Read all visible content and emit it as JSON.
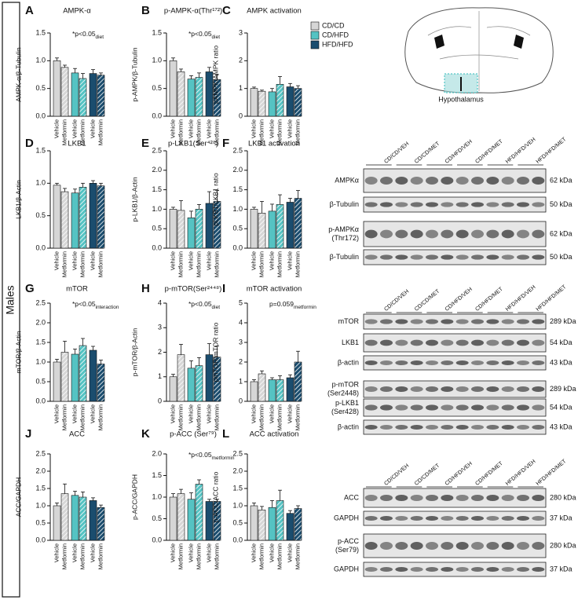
{
  "side_label": "Males",
  "legend": [
    {
      "name": "CD/CD",
      "color": "#d6d6d6"
    },
    {
      "name": "CD/HFD",
      "color": "#55c3c3"
    },
    {
      "name": "HFD/HFD",
      "color": "#1b4d6e"
    }
  ],
  "brain_label": "Hypothalamus",
  "chart_data": [
    {
      "type": "bar",
      "panel": "A",
      "title": "AMPK-α",
      "ylabel": "AMPK-α/β-Tubulin",
      "annotation": {
        "text": "*p<0.05",
        "sub": "diet"
      },
      "categories": [
        "Vehicle",
        "Metformin",
        "Vehicle",
        "Metformin",
        "Vehicle",
        "Metformin"
      ],
      "values": [
        1.0,
        0.88,
        0.78,
        0.68,
        0.77,
        0.74
      ],
      "errors": [
        0.05,
        0.04,
        0.08,
        0.09,
        0.07,
        0.04
      ],
      "ylim": [
        0,
        1.5
      ],
      "yticks": [
        {
          "value": 0,
          "label": "0.0"
        },
        0.5,
        {
          "value": 1,
          "label": "1.0"
        },
        1.5
      ]
    },
    {
      "type": "bar",
      "panel": "B",
      "title": "p-AMPK-α(Thr¹⁷²)",
      "ylabel": "p-AMPK/β-Tubulin",
      "annotation": {
        "text": "*p<0.05",
        "sub": "diet"
      },
      "categories": [
        "Vehicle",
        "Metformin",
        "Vehicle",
        "Metformin",
        "Vehicle",
        "Metformin"
      ],
      "values": [
        1.0,
        0.8,
        0.67,
        0.7,
        0.8,
        0.66
      ],
      "errors": [
        0.05,
        0.05,
        0.06,
        0.08,
        0.08,
        0.09
      ],
      "ylim": [
        0,
        1.5
      ],
      "yticks": [
        {
          "value": 0,
          "label": "0.0"
        },
        0.5,
        {
          "value": 1,
          "label": "1.0"
        },
        1.5
      ]
    },
    {
      "type": "bar",
      "panel": "C",
      "title": "AMPK activation",
      "ylabel": "pAMPK/AMPK ratio",
      "categories": [
        "Vehicle",
        "Metformin",
        "Vehicle",
        "Metformin",
        "Vehicle",
        "Metformin"
      ],
      "values": [
        1.0,
        0.9,
        0.88,
        1.15,
        1.06,
        1.0
      ],
      "errors": [
        0.05,
        0.04,
        0.12,
        0.28,
        0.12,
        0.1
      ],
      "ylim": [
        0,
        3
      ],
      "yticks": [
        0,
        1,
        2,
        3
      ]
    },
    {
      "type": "bar",
      "panel": "D",
      "title": "LKB1",
      "ylabel": "LKB1/β-Actin",
      "categories": [
        "Vehicle",
        "Metformin",
        "Vehicle",
        "Metformin",
        "Vehicle",
        "Metformin"
      ],
      "values": [
        0.97,
        0.87,
        0.85,
        0.94,
        1.0,
        0.96
      ],
      "errors": [
        0.03,
        0.05,
        0.06,
        0.06,
        0.04,
        0.04
      ],
      "ylim": [
        0,
        1.5
      ],
      "yticks": [
        {
          "value": 0,
          "label": "0.0"
        },
        0.5,
        {
          "value": 1,
          "label": "1.0"
        },
        1.5
      ]
    },
    {
      "type": "bar",
      "panel": "E",
      "title": "p-LKB1(Ser⁴²⁸)",
      "ylabel": "p-LKB1/β-Actin",
      "categories": [
        "Vehicle",
        "Metformin",
        "Vehicle",
        "Metformin",
        "Vehicle",
        "Metformin"
      ],
      "values": [
        1.0,
        0.97,
        0.78,
        1.0,
        1.15,
        1.2
      ],
      "errors": [
        0.05,
        0.25,
        0.17,
        0.12,
        0.3,
        0.28
      ],
      "ylim": [
        0,
        2.5
      ],
      "yticks": [
        {
          "value": 0,
          "label": "0.0"
        },
        0.5,
        {
          "value": 1,
          "label": "1.0"
        },
        1.5,
        {
          "value": 2,
          "label": "2.0"
        },
        2.5
      ]
    },
    {
      "type": "bar",
      "panel": "F",
      "title": "LKB1 activation",
      "ylabel": "pLKB1/LKB1 ratio",
      "categories": [
        "Vehicle",
        "Metformin",
        "Vehicle",
        "Metformin",
        "Vehicle",
        "Metformin"
      ],
      "values": [
        1.0,
        0.9,
        0.95,
        1.12,
        1.18,
        1.28
      ],
      "errors": [
        0.05,
        0.3,
        0.18,
        0.25,
        0.1,
        0.2
      ],
      "ylim": [
        0,
        2.5
      ],
      "yticks": [
        {
          "value": 0,
          "label": "0.0"
        },
        0.5,
        {
          "value": 1,
          "label": "1.0"
        },
        1.5,
        {
          "value": 2,
          "label": "2.0"
        },
        2.5
      ]
    },
    {
      "type": "bar",
      "panel": "G",
      "title": "mTOR",
      "ylabel": "mTOR/β-Actin",
      "annotation": {
        "text": "*p<0.05",
        "sub": "interaction"
      },
      "categories": [
        "Vehicle",
        "Metformin",
        "Vehicle",
        "Metformin",
        "Vehicle",
        "Metformin"
      ],
      "values": [
        1.0,
        1.25,
        1.2,
        1.42,
        1.3,
        0.95
      ],
      "errors": [
        0.07,
        0.28,
        0.13,
        0.18,
        0.1,
        0.1
      ],
      "ylim": [
        0,
        2.5
      ],
      "yticks": [
        {
          "value": 0,
          "label": "0.0"
        },
        0.5,
        {
          "value": 1,
          "label": "1.0"
        },
        1.5,
        {
          "value": 2,
          "label": "2.0"
        },
        2.5
      ]
    },
    {
      "type": "bar",
      "panel": "H",
      "title": "p-mTOR(Ser²⁴⁴⁸)",
      "ylabel": "p-mTOR/β-Actin",
      "annotation": {
        "text": "*p<0.05",
        "sub": "diet"
      },
      "categories": [
        "Vehicle",
        "Metformin",
        "Vehicle",
        "Metformin",
        "Vehicle",
        "Metformin"
      ],
      "values": [
        1.0,
        1.9,
        1.35,
        1.45,
        1.9,
        1.8
      ],
      "errors": [
        0.1,
        0.42,
        0.3,
        0.33,
        0.45,
        0.45
      ],
      "ylim": [
        0,
        4
      ],
      "yticks": [
        0,
        1,
        2,
        3,
        4
      ]
    },
    {
      "type": "bar",
      "panel": "I",
      "title": "mTOR activation",
      "ylabel": "pmTOR/mTOR ratio",
      "annotation": {
        "text": "p=0.059",
        "sub": "metformin"
      },
      "categories": [
        "Vehicle",
        "Metformin",
        "Vehicle",
        "Metformin",
        "Vehicle",
        "Metformin"
      ],
      "values": [
        1.0,
        1.4,
        1.1,
        1.1,
        1.2,
        2.0
      ],
      "errors": [
        0.1,
        0.15,
        0.1,
        0.2,
        0.15,
        0.55
      ],
      "ylim": [
        0,
        5
      ],
      "yticks": [
        0,
        1,
        2,
        3,
        4,
        5
      ]
    },
    {
      "type": "bar",
      "panel": "J",
      "title": "ACC",
      "ylabel": "ACC/GAPDH",
      "categories": [
        "Vehicle",
        "Metformin",
        "Vehicle",
        "Metformin",
        "Vehicle",
        "Metformin"
      ],
      "values": [
        1.0,
        1.35,
        1.3,
        1.25,
        1.15,
        0.95
      ],
      "errors": [
        0.08,
        0.28,
        0.12,
        0.15,
        0.08,
        0.07
      ],
      "ylim": [
        0,
        2.5
      ],
      "yticks": [
        {
          "value": 0,
          "label": "0.0"
        },
        0.5,
        {
          "value": 1,
          "label": "1.0"
        },
        1.5,
        {
          "value": 2,
          "label": "2.0"
        },
        2.5
      ]
    },
    {
      "type": "bar",
      "panel": "K",
      "title": "p-ACC (Ser⁷⁹)",
      "ylabel": "p-ACC/GAPDH",
      "annotation": {
        "text": "*p<0.05",
        "sub": "metformin"
      },
      "categories": [
        "Vehicle",
        "Metformin",
        "Vehicle",
        "Metformin",
        "Vehicle",
        "Metformin"
      ],
      "values": [
        1.0,
        1.08,
        0.95,
        1.3,
        0.9,
        0.9
      ],
      "errors": [
        0.08,
        0.1,
        0.15,
        0.1,
        0.05,
        0.05
      ],
      "ylim": [
        0,
        2.0
      ],
      "yticks": [
        {
          "value": 0,
          "label": "0.0"
        },
        0.5,
        {
          "value": 1,
          "label": "1.0"
        },
        1.5,
        {
          "value": 2,
          "label": "2.0"
        }
      ]
    },
    {
      "type": "bar",
      "panel": "L",
      "title": "ACC activation",
      "ylabel": "p-ACC/ACC ratio",
      "categories": [
        "Vehicle",
        "Metformin",
        "Vehicle",
        "Metformin",
        "Vehicle",
        "Metformin"
      ],
      "values": [
        1.0,
        0.88,
        0.95,
        1.15,
        0.78,
        0.92
      ],
      "errors": [
        0.08,
        0.1,
        0.2,
        0.3,
        0.08,
        0.08
      ],
      "ylim": [
        0,
        2.5
      ],
      "yticks": [
        {
          "value": 0,
          "label": "0.0"
        },
        0.5,
        {
          "value": 1,
          "label": "1.0"
        },
        1.5,
        {
          "value": 2,
          "label": "2.0"
        },
        2.5
      ]
    }
  ],
  "blots": [
    {
      "lanes": [
        "CD/CD/VEH",
        "CD/CD/MET",
        "CD/HFD/VEH",
        "CD/HFD/MET",
        "HFD/HFD/VEH",
        "HFD/HFD/MET"
      ],
      "rows": [
        {
          "label": [
            "AMPKα"
          ],
          "kda": "62 kDa"
        },
        {
          "label": [
            "β-Tubulin"
          ],
          "kda": "50 kDa"
        },
        {
          "label": [
            "p-AMPKα",
            "(Thr172)"
          ],
          "kda": "62 kDa"
        },
        {
          "label": [
            "β-Tubulin"
          ],
          "kda": "50 kDa"
        }
      ]
    },
    {
      "lanes": [
        "CD/CD/VEH",
        "CD/CD/MET",
        "CD/HFD/VEH",
        "CD/HFD/MET",
        "HFD/HFD/VEH",
        "HFD/HFD/MET"
      ],
      "rows": [
        {
          "label": [
            "mTOR"
          ],
          "kda": "289 kDa"
        },
        {
          "label": [
            "LKB1"
          ],
          "kda": "54 kDa"
        },
        {
          "label": [
            "β-actin"
          ],
          "kda": "43 kDa"
        },
        {
          "label": [
            "p-mTOR",
            "(Ser2448)"
          ],
          "kda": "289 kDa"
        },
        {
          "label": [
            "p-LKB1",
            "(Ser428)"
          ],
          "kda": "54 kDa"
        },
        {
          "label": [
            "β-actin"
          ],
          "kda": "43 kDa"
        }
      ]
    },
    {
      "lanes": [
        "CD/CD/VEH",
        "CD/CD/MET",
        "CD/HFD/VEH",
        "CD/HFD/MET",
        "HFD/HFD/VEH",
        "HFD/HFD/MET"
      ],
      "rows": [
        {
          "label": [
            "ACC"
          ],
          "kda": "280 kDa"
        },
        {
          "label": [
            "GAPDH"
          ],
          "kda": "37 kDa"
        },
        {
          "label": [
            "p-ACC",
            "(Ser79)"
          ],
          "kda": "280 kDa"
        },
        {
          "label": [
            "GAPDH"
          ],
          "kda": "37 kDa"
        }
      ]
    }
  ]
}
